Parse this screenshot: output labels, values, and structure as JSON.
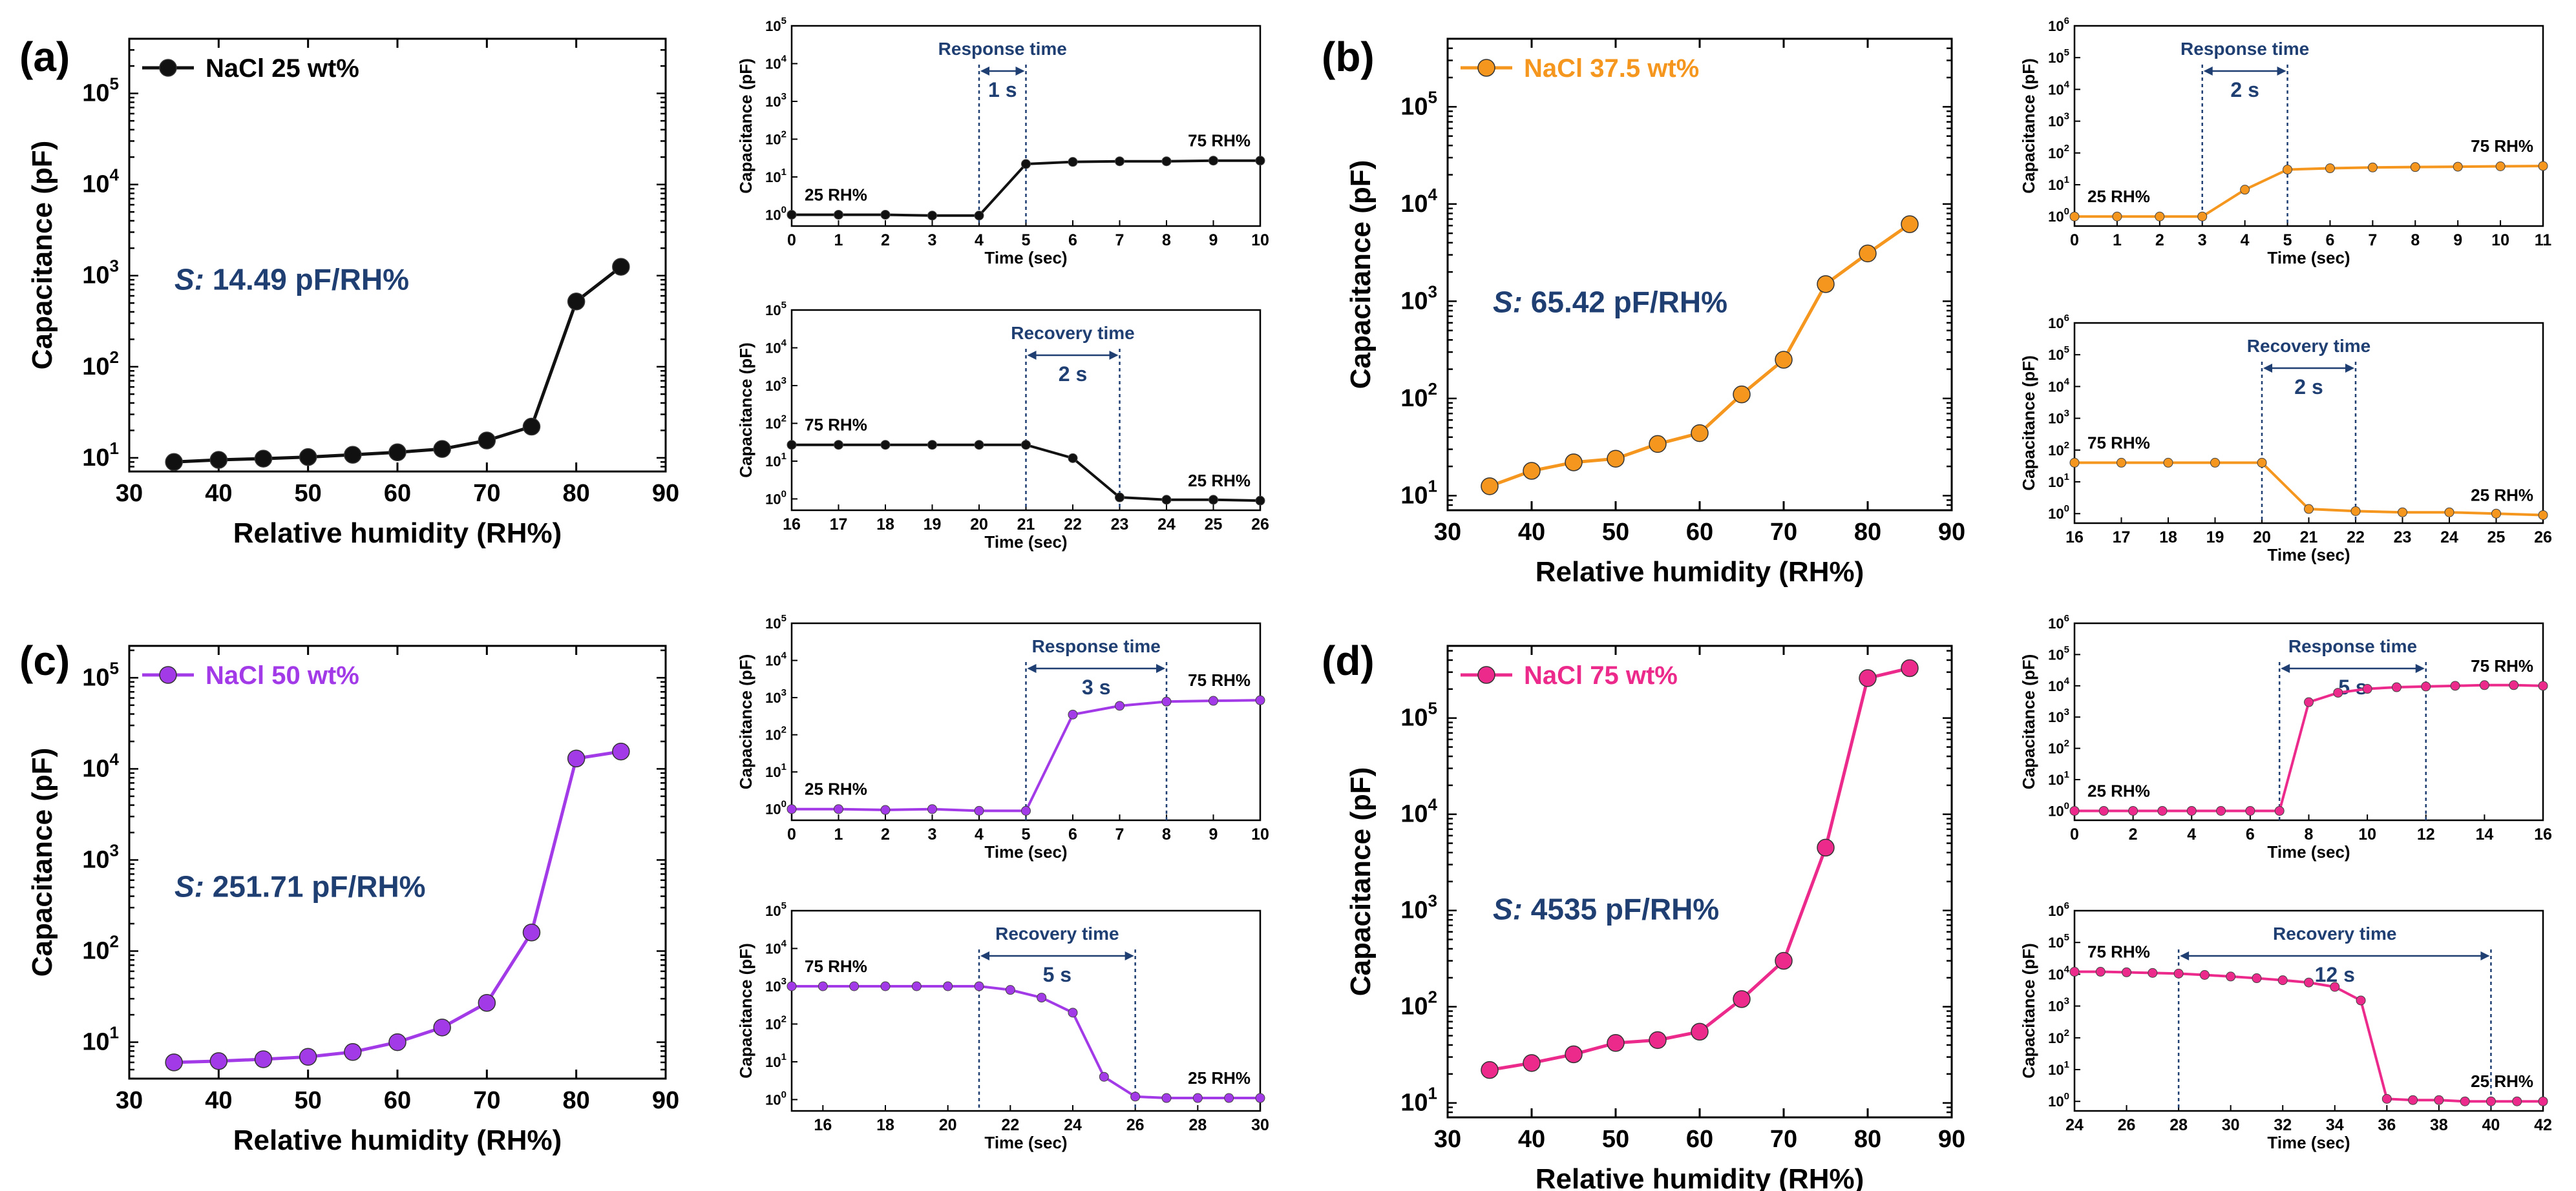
{
  "chart_data": [
    {
      "panel": "(a)",
      "kind": "main",
      "type": "line",
      "color": "#111111",
      "legend": "NaCl 25 wt%",
      "annotation_prefix": "S:",
      "annotation_value": " 14.49 pF/RH%",
      "xlabel": "Relative humidity (RH%)",
      "ylabel": "Capacitance (pF)",
      "xlim": [
        30,
        90
      ],
      "xticks": [
        30,
        40,
        50,
        60,
        70,
        80,
        90
      ],
      "ylog": [
        0.85,
        5.6
      ],
      "yticks": [
        1,
        2,
        3,
        4,
        5
      ],
      "x": [
        35,
        40,
        45,
        50,
        55,
        60,
        65,
        70,
        75,
        80,
        85
      ],
      "y": [
        9,
        9.5,
        9.8,
        10.2,
        10.8,
        11.5,
        12.5,
        15.5,
        22,
        520,
        1250
      ]
    },
    {
      "panel": "(a)",
      "kind": "response",
      "type": "line",
      "color": "#111111",
      "xlabel": "Time (sec)",
      "ylabel": "Capacitance (pF)",
      "xlim": [
        0,
        10
      ],
      "xticks": [
        0,
        1,
        2,
        3,
        4,
        5,
        6,
        7,
        8,
        9,
        10
      ],
      "yticks": [
        0,
        1,
        2,
        3,
        4,
        5
      ],
      "ylog": [
        -0.3,
        5
      ],
      "title": "Response time",
      "span": [
        4,
        5
      ],
      "span_label": "1 s",
      "start_label": "25 RH%",
      "end_label": "75 RH%",
      "x": [
        0,
        1,
        2,
        3,
        4,
        5,
        6,
        7,
        8,
        9,
        10
      ],
      "y": [
        1,
        1,
        1,
        0.95,
        0.95,
        22,
        25,
        26,
        26,
        27,
        27
      ]
    },
    {
      "panel": "(a)",
      "kind": "recovery",
      "type": "line",
      "color": "#111111",
      "xlabel": "Time (sec)",
      "ylabel": "Capacitance (pF)",
      "xlim": [
        16,
        26
      ],
      "xticks": [
        16,
        17,
        18,
        19,
        20,
        21,
        22,
        23,
        24,
        25,
        26
      ],
      "yticks": [
        0,
        1,
        2,
        3,
        4,
        5
      ],
      "ylog": [
        -0.3,
        5
      ],
      "title": "Recovery time",
      "span": [
        21,
        23
      ],
      "span_label": "2 s",
      "start_label": "75 RH%",
      "end_label": "25 RH%",
      "x": [
        16,
        17,
        18,
        19,
        20,
        21,
        22,
        23,
        24,
        25,
        26
      ],
      "y": [
        27,
        27,
        27,
        27,
        27,
        27,
        12,
        1.1,
        0.95,
        0.95,
        0.9
      ]
    },
    {
      "panel": "(b)",
      "kind": "main",
      "type": "line",
      "color": "#f5961e",
      "legend": "NaCl 37.5 wt%",
      "annotation_prefix": "S:",
      "annotation_value": " 65.42 pF/RH%",
      "xlabel": "Relative humidity (RH%)",
      "ylabel": "Capacitance (pF)",
      "xlim": [
        30,
        90
      ],
      "xticks": [
        30,
        40,
        50,
        60,
        70,
        80,
        90
      ],
      "ylog": [
        0.85,
        5.7
      ],
      "yticks": [
        1,
        2,
        3,
        4,
        5
      ],
      "x": [
        35,
        40,
        45,
        50,
        55,
        60,
        65,
        70,
        75,
        80,
        85
      ],
      "y": [
        12.5,
        18,
        22,
        24,
        34,
        44,
        110,
        250,
        1500,
        3100,
        6200
      ]
    },
    {
      "panel": "(b)",
      "kind": "response",
      "type": "line",
      "color": "#f5961e",
      "xlabel": "Time (sec)",
      "ylabel": "Capacitance (pF)",
      "xlim": [
        0,
        11
      ],
      "xticks": [
        0,
        1,
        2,
        3,
        4,
        5,
        6,
        7,
        8,
        9,
        10,
        11
      ],
      "yticks": [
        0,
        1,
        2,
        3,
        4,
        5,
        6
      ],
      "ylog": [
        -0.3,
        6
      ],
      "title": "Response time",
      "span": [
        3,
        5
      ],
      "span_label": "2 s",
      "start_label": "25 RH%",
      "end_label": "75 RH%",
      "x": [
        0,
        1,
        2,
        3,
        4,
        5,
        6,
        7,
        8,
        9,
        10,
        11
      ],
      "y": [
        1,
        1,
        1,
        1,
        7,
        30,
        33,
        35,
        36,
        37,
        38,
        39
      ]
    },
    {
      "panel": "(b)",
      "kind": "recovery",
      "type": "line",
      "color": "#f5961e",
      "xlabel": "Time (sec)",
      "ylabel": "Capacitance (pF)",
      "xlim": [
        16,
        26
      ],
      "xticks": [
        16,
        17,
        18,
        19,
        20,
        21,
        22,
        23,
        24,
        25,
        26
      ],
      "yticks": [
        0,
        1,
        2,
        3,
        4,
        5,
        6
      ],
      "ylog": [
        -0.3,
        6
      ],
      "title": "Recovery time",
      "span": [
        20,
        22
      ],
      "span_label": "2 s",
      "start_label": "75 RH%",
      "end_label": "25 RH%",
      "x": [
        16,
        17,
        18,
        19,
        20,
        21,
        22,
        23,
        24,
        25,
        26
      ],
      "y": [
        40,
        40,
        40,
        40,
        40,
        1.4,
        1.2,
        1.1,
        1.1,
        1.0,
        0.9
      ]
    },
    {
      "panel": "(c)",
      "kind": "main",
      "type": "line",
      "color": "#a23ae8",
      "legend": "NaCl 50 wt%",
      "annotation_prefix": "S:",
      "annotation_value": " 251.71 pF/RH%",
      "xlabel": "Relative humidity (RH%)",
      "ylabel": "Capacitance (pF)",
      "xlim": [
        30,
        90
      ],
      "xticks": [
        30,
        40,
        50,
        60,
        70,
        80,
        90
      ],
      "ylog": [
        0.6,
        5.35
      ],
      "yticks": [
        1,
        2,
        3,
        4,
        5
      ],
      "x": [
        35,
        40,
        45,
        50,
        55,
        60,
        65,
        70,
        75,
        80,
        85
      ],
      "y": [
        6,
        6.2,
        6.5,
        6.9,
        7.8,
        10,
        14.5,
        27,
        160,
        13000,
        15500
      ]
    },
    {
      "panel": "(c)",
      "kind": "response",
      "type": "line",
      "color": "#a23ae8",
      "xlabel": "Time (sec)",
      "ylabel": "Capacitance (pF)",
      "xlim": [
        0,
        10
      ],
      "xticks": [
        0,
        1,
        2,
        3,
        4,
        5,
        6,
        7,
        8,
        9,
        10
      ],
      "yticks": [
        0,
        1,
        2,
        3,
        4,
        5
      ],
      "ylog": [
        -0.3,
        5
      ],
      "title": "Response time",
      "span": [
        5,
        8
      ],
      "span_label": "3 s",
      "start_label": "25 RH%",
      "end_label": "75 RH%",
      "x": [
        0,
        1,
        2,
        3,
        4,
        5,
        6,
        7,
        8,
        9,
        10
      ],
      "y": [
        1,
        1,
        0.95,
        1.0,
        0.9,
        0.9,
        350,
        600,
        780,
        820,
        850
      ]
    },
    {
      "panel": "(c)",
      "kind": "recovery",
      "type": "line",
      "color": "#a23ae8",
      "xlabel": "Time (sec)",
      "ylabel": "Capacitance (pF)",
      "xlim": [
        15,
        30
      ],
      "xticks": [
        16,
        18,
        20,
        22,
        24,
        26,
        28,
        30
      ],
      "yticks": [
        0,
        1,
        2,
        3,
        4,
        5
      ],
      "ylog": [
        -0.3,
        5
      ],
      "title": "Recovery time",
      "span": [
        21,
        26
      ],
      "span_label": "5 s",
      "start_label": "75 RH%",
      "end_label": "25 RH%",
      "x": [
        15,
        16,
        17,
        18,
        19,
        20,
        21,
        22,
        23,
        24,
        25,
        26,
        27,
        28,
        29,
        30
      ],
      "y": [
        1000,
        1000,
        1000,
        1000,
        1000,
        1000,
        1000,
        800,
        500,
        200,
        4,
        1.2,
        1.1,
        1.1,
        1.1,
        1.1
      ]
    },
    {
      "panel": "(d)",
      "kind": "main",
      "type": "line",
      "color": "#ec2a8c",
      "legend": "NaCl 75 wt%",
      "annotation_prefix": "S:",
      "annotation_value": " 4535 pF/RH%",
      "xlabel": "Relative humidity (RH%)",
      "ylabel": "Capacitance (pF)",
      "xlim": [
        30,
        90
      ],
      "xticks": [
        30,
        40,
        50,
        60,
        70,
        80,
        90
      ],
      "ylog": [
        0.85,
        5.75
      ],
      "yticks": [
        1,
        2,
        3,
        4,
        5
      ],
      "x": [
        35,
        40,
        45,
        50,
        55,
        60,
        65,
        70,
        75,
        80,
        85
      ],
      "y": [
        22,
        26,
        32,
        42,
        45,
        55,
        120,
        300,
        4500,
        260000,
        330000
      ]
    },
    {
      "panel": "(d)",
      "kind": "response",
      "type": "line",
      "color": "#ec2a8c",
      "xlabel": "Time (sec)",
      "ylabel": "Capacitance (pF)",
      "xlim": [
        0,
        16
      ],
      "xticks": [
        0,
        2,
        4,
        6,
        8,
        10,
        12,
        14,
        16
      ],
      "yticks": [
        0,
        1,
        2,
        3,
        4,
        5,
        6
      ],
      "ylog": [
        -0.3,
        6
      ],
      "title": "Response time",
      "span": [
        7,
        12
      ],
      "span_label": "5 s",
      "start_label": "25 RH%",
      "end_label": "75 RH%",
      "x": [
        0,
        1,
        2,
        3,
        4,
        5,
        6,
        7,
        8,
        9,
        10,
        11,
        12,
        13,
        14,
        15,
        16
      ],
      "y": [
        1,
        1,
        1,
        1,
        1,
        1,
        1,
        1,
        3000,
        6000,
        8000,
        9000,
        9500,
        10000,
        10500,
        10500,
        10000
      ]
    },
    {
      "panel": "(d)",
      "kind": "recovery",
      "type": "line",
      "color": "#ec2a8c",
      "xlabel": "Time (sec)",
      "ylabel": "Capacitance (pF)",
      "xlim": [
        24,
        42
      ],
      "xticks": [
        24,
        26,
        28,
        30,
        32,
        34,
        36,
        38,
        40,
        42
      ],
      "yticks": [
        0,
        1,
        2,
        3,
        4,
        5,
        6
      ],
      "ylog": [
        -0.3,
        6
      ],
      "title": "Recovery time",
      "span": [
        28,
        40
      ],
      "span_label": "12 s",
      "start_label": "75 RH%",
      "end_label": "25 RH%",
      "x": [
        24,
        25,
        26,
        27,
        28,
        29,
        30,
        31,
        32,
        33,
        34,
        35,
        36,
        37,
        38,
        39,
        40,
        41,
        42
      ],
      "y": [
        12000,
        12000,
        11500,
        11000,
        10500,
        9500,
        8500,
        7500,
        6500,
        5500,
        4000,
        1500,
        1.2,
        1.1,
        1.1,
        1.0,
        1.0,
        1.0,
        1.0
      ]
    }
  ],
  "panel_labels": [
    "(a)",
    "(b)",
    "(c)",
    "(d)"
  ],
  "colors": {
    "annotation": "#1f3f73",
    "span_line": "#1f3f73"
  }
}
